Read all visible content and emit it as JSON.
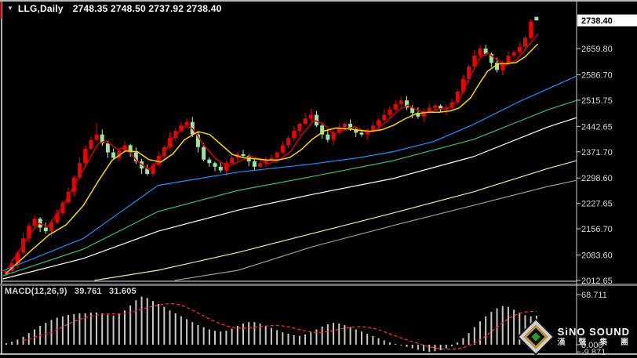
{
  "title": {
    "symbol": "LLG,Daily",
    "quote": "2748.35 2748.50 2737.92 2738.40",
    "open": "2748.35",
    "high": "2748.50",
    "low": "2737.92",
    "close": "2738.40"
  },
  "macd_label": {
    "name": "MACD(12,26,9)",
    "main_value": "39.761",
    "signal_value": "31.605"
  },
  "logo": {
    "brand": "SiNO SOUND",
    "brand_cn": "漢 聲 集 團"
  },
  "colors": {
    "background": "#000000",
    "up_candle": "#f20000",
    "down_candle_body": "#9de49d",
    "down_candle_wick": "#bdeebd",
    "ma_red": "#d40000",
    "ma_yellow": "#ffd400",
    "ma_blue": "#1e90ff",
    "ma_green": "#3cb878",
    "ma_white": "#ffffff",
    "ma_cream": "#eee8aa",
    "ma_gray": "#9a9a9a",
    "histogram": "#c8c8c8",
    "signal": "#ff2a2a",
    "axis_text": "#d8d8d8",
    "frame": "#e8e8e8",
    "separator": "#6e6e6e",
    "price_tag_bg": "#ffffff",
    "price_tag_text": "#000000"
  },
  "chart_data": {
    "type": "candlestick",
    "symbol": "LLG",
    "timeframe": "Daily",
    "grid": "off",
    "legend_position": "none",
    "current_price": 2738.4,
    "price_axis_ticks": [
      2659.8,
      2586.7,
      2515.75,
      2442.65,
      2371.7,
      2298.6,
      2227.65,
      2156.7,
      2083.6,
      2012.65
    ],
    "price_range_anchor": {
      "price_top_tick": 2659.8,
      "price_bottom_tick": 2012.65
    },
    "candles_ohlc": [
      [
        2030,
        2046,
        2022,
        2040
      ],
      [
        2040,
        2072,
        2035,
        2060
      ],
      [
        2060,
        2095,
        2047,
        2090
      ],
      [
        2090,
        2146,
        2084,
        2130
      ],
      [
        2130,
        2173,
        2120,
        2165
      ],
      [
        2165,
        2195,
        2161,
        2185
      ],
      [
        2185,
        2189,
        2148,
        2160
      ],
      [
        2160,
        2174,
        2143,
        2150
      ],
      [
        2150,
        2182,
        2135,
        2175
      ],
      [
        2175,
        2211,
        2170,
        2200
      ],
      [
        2200,
        2236,
        2192,
        2230
      ],
      [
        2230,
        2272,
        2225,
        2260
      ],
      [
        2260,
        2305,
        2247,
        2300
      ],
      [
        2300,
        2356,
        2294,
        2340
      ],
      [
        2340,
        2388,
        2330,
        2380
      ],
      [
        2380,
        2415,
        2376,
        2405
      ],
      [
        2405,
        2452,
        2398,
        2420
      ],
      [
        2420,
        2434,
        2388,
        2395
      ],
      [
        2395,
        2402,
        2355,
        2370
      ],
      [
        2370,
        2381,
        2350,
        2355
      ],
      [
        2355,
        2381,
        2345,
        2375
      ],
      [
        2375,
        2402,
        2371,
        2390
      ],
      [
        2390,
        2394,
        2358,
        2370
      ],
      [
        2370,
        2384,
        2338,
        2345
      ],
      [
        2345,
        2352,
        2310,
        2325
      ],
      [
        2325,
        2336,
        2305,
        2310
      ],
      [
        2310,
        2341,
        2302,
        2335
      ],
      [
        2335,
        2372,
        2330,
        2360
      ],
      [
        2360,
        2390,
        2347,
        2385
      ],
      [
        2385,
        2426,
        2379,
        2410
      ],
      [
        2410,
        2438,
        2400,
        2430
      ],
      [
        2430,
        2455,
        2426,
        2445
      ],
      [
        2445,
        2466,
        2440,
        2455
      ],
      [
        2455,
        2469,
        2413,
        2420
      ],
      [
        2420,
        2427,
        2370,
        2385
      ],
      [
        2385,
        2396,
        2345,
        2350
      ],
      [
        2350,
        2356,
        2330,
        2340
      ],
      [
        2340,
        2344,
        2318,
        2330
      ],
      [
        2330,
        2342,
        2313,
        2320
      ],
      [
        2320,
        2347,
        2305,
        2340
      ],
      [
        2340,
        2366,
        2335,
        2355
      ],
      [
        2355,
        2371,
        2347,
        2365
      ],
      [
        2365,
        2377,
        2355,
        2360
      ],
      [
        2360,
        2365,
        2332,
        2345
      ],
      [
        2345,
        2353,
        2320,
        2330
      ],
      [
        2330,
        2356,
        2326,
        2340
      ],
      [
        2340,
        2358,
        2330,
        2350
      ],
      [
        2350,
        2365,
        2346,
        2355
      ],
      [
        2355,
        2374,
        2341,
        2370
      ],
      [
        2370,
        2401,
        2365,
        2390
      ],
      [
        2390,
        2416,
        2382,
        2410
      ],
      [
        2410,
        2442,
        2405,
        2430
      ],
      [
        2430,
        2455,
        2417,
        2450
      ],
      [
        2450,
        2481,
        2444,
        2465
      ],
      [
        2465,
        2492,
        2455,
        2475
      ],
      [
        2475,
        2485,
        2441,
        2445
      ],
      [
        2445,
        2449,
        2408,
        2420
      ],
      [
        2420,
        2434,
        2398,
        2405
      ],
      [
        2405,
        2432,
        2390,
        2425
      ],
      [
        2425,
        2451,
        2420,
        2440
      ],
      [
        2440,
        2456,
        2432,
        2450
      ],
      [
        2450,
        2462,
        2430,
        2435
      ],
      [
        2435,
        2440,
        2413,
        2425
      ],
      [
        2425,
        2434,
        2414,
        2420
      ],
      [
        2420,
        2437,
        2405,
        2430
      ],
      [
        2430,
        2456,
        2425,
        2445
      ],
      [
        2445,
        2465,
        2432,
        2460
      ],
      [
        2460,
        2491,
        2454,
        2475
      ],
      [
        2475,
        2498,
        2465,
        2490
      ],
      [
        2490,
        2515,
        2486,
        2505
      ],
      [
        2505,
        2526,
        2493,
        2515
      ],
      [
        2515,
        2527,
        2488,
        2495
      ],
      [
        2495,
        2502,
        2465,
        2480
      ],
      [
        2480,
        2496,
        2464,
        2470
      ],
      [
        2470,
        2493,
        2455,
        2485
      ],
      [
        2485,
        2506,
        2480,
        2495
      ],
      [
        2495,
        2504,
        2488,
        2500
      ],
      [
        2500,
        2504,
        2483,
        2490
      ],
      [
        2490,
        2502,
        2475,
        2495
      ],
      [
        2495,
        2521,
        2490,
        2510
      ],
      [
        2510,
        2546,
        2502,
        2540
      ],
      [
        2540,
        2587,
        2535,
        2575
      ],
      [
        2575,
        2615,
        2562,
        2610
      ],
      [
        2610,
        2656,
        2604,
        2640
      ],
      [
        2640,
        2668,
        2630,
        2660
      ],
      [
        2660,
        2670,
        2641,
        2645
      ],
      [
        2645,
        2649,
        2608,
        2620
      ],
      [
        2620,
        2634,
        2593,
        2600
      ],
      [
        2600,
        2627,
        2585,
        2620
      ],
      [
        2620,
        2651,
        2615,
        2640
      ],
      [
        2640,
        2656,
        2632,
        2650
      ],
      [
        2650,
        2677,
        2645,
        2665
      ],
      [
        2665,
        2695,
        2652,
        2690
      ],
      [
        2690,
        2741,
        2684,
        2735
      ],
      [
        2748.35,
        2748.5,
        2737.92,
        2738.4
      ]
    ],
    "overlays": [
      {
        "name": "ma-fast-red",
        "color": "#d40000",
        "width": 1.5,
        "points": [
          [
            0.005,
            2040
          ],
          [
            0.05,
            2150
          ],
          [
            0.063,
            2172
          ],
          [
            0.077,
            2162
          ],
          [
            0.104,
            2220
          ],
          [
            0.131,
            2300
          ],
          [
            0.166,
            2395
          ],
          [
            0.179,
            2402
          ],
          [
            0.2,
            2378
          ],
          [
            0.213,
            2385
          ],
          [
            0.234,
            2345
          ],
          [
            0.254,
            2322
          ],
          [
            0.275,
            2355
          ],
          [
            0.296,
            2410
          ],
          [
            0.316,
            2443
          ],
          [
            0.33,
            2437
          ],
          [
            0.35,
            2390
          ],
          [
            0.371,
            2352
          ],
          [
            0.391,
            2331
          ],
          [
            0.412,
            2345
          ],
          [
            0.432,
            2360
          ],
          [
            0.446,
            2352
          ],
          [
            0.46,
            2338
          ],
          [
            0.48,
            2348
          ],
          [
            0.501,
            2372
          ],
          [
            0.521,
            2420
          ],
          [
            0.542,
            2460
          ],
          [
            0.558,
            2450
          ],
          [
            0.576,
            2422
          ],
          [
            0.597,
            2434
          ],
          [
            0.613,
            2442
          ],
          [
            0.631,
            2428
          ],
          [
            0.648,
            2432
          ],
          [
            0.668,
            2455
          ],
          [
            0.689,
            2488
          ],
          [
            0.706,
            2502
          ],
          [
            0.722,
            2488
          ],
          [
            0.74,
            2480
          ],
          [
            0.758,
            2491
          ],
          [
            0.777,
            2495
          ],
          [
            0.795,
            2518
          ],
          [
            0.815,
            2585
          ],
          [
            0.832,
            2635
          ],
          [
            0.845,
            2648
          ],
          [
            0.863,
            2626
          ],
          [
            0.877,
            2613
          ],
          [
            0.895,
            2629
          ],
          [
            0.911,
            2658
          ],
          [
            0.932,
            2700
          ]
        ]
      },
      {
        "name": "ma-mid-yellow",
        "color": "#ffd400",
        "width": 1.5,
        "points": [
          [
            0.005,
            2032
          ],
          [
            0.05,
            2098
          ],
          [
            0.08,
            2140
          ],
          [
            0.11,
            2168
          ],
          [
            0.14,
            2222
          ],
          [
            0.166,
            2290
          ],
          [
            0.19,
            2348
          ],
          [
            0.213,
            2374
          ],
          [
            0.234,
            2372
          ],
          [
            0.254,
            2350
          ],
          [
            0.275,
            2343
          ],
          [
            0.296,
            2366
          ],
          [
            0.316,
            2405
          ],
          [
            0.34,
            2428
          ],
          [
            0.36,
            2420
          ],
          [
            0.38,
            2392
          ],
          [
            0.4,
            2364
          ],
          [
            0.42,
            2355
          ],
          [
            0.44,
            2352
          ],
          [
            0.46,
            2349
          ],
          [
            0.48,
            2349
          ],
          [
            0.5,
            2356
          ],
          [
            0.52,
            2378
          ],
          [
            0.54,
            2408
          ],
          [
            0.56,
            2430
          ],
          [
            0.58,
            2438
          ],
          [
            0.6,
            2436
          ],
          [
            0.62,
            2432
          ],
          [
            0.64,
            2429
          ],
          [
            0.66,
            2433
          ],
          [
            0.68,
            2445
          ],
          [
            0.7,
            2463
          ],
          [
            0.72,
            2478
          ],
          [
            0.74,
            2482
          ],
          [
            0.76,
            2482
          ],
          [
            0.78,
            2486
          ],
          [
            0.795,
            2494
          ],
          [
            0.815,
            2522
          ],
          [
            0.832,
            2566
          ],
          [
            0.845,
            2597
          ],
          [
            0.863,
            2617
          ],
          [
            0.877,
            2618
          ],
          [
            0.895,
            2621
          ],
          [
            0.911,
            2638
          ],
          [
            0.932,
            2672
          ]
        ]
      },
      {
        "name": "ma-blue",
        "color": "#1e90ff",
        "width": 1.2,
        "points": [
          [
            0,
            2040
          ],
          [
            0.14,
            2130
          ],
          [
            0.27,
            2278
          ],
          [
            0.41,
            2315
          ],
          [
            0.54,
            2338
          ],
          [
            0.62,
            2355
          ],
          [
            0.68,
            2372
          ],
          [
            0.75,
            2400
          ],
          [
            0.82,
            2448
          ],
          [
            0.9,
            2512
          ],
          [
            1,
            2583
          ]
        ]
      },
      {
        "name": "ma-green",
        "color": "#3cb878",
        "width": 1.2,
        "points": [
          [
            0,
            2026
          ],
          [
            0.14,
            2100
          ],
          [
            0.27,
            2205
          ],
          [
            0.41,
            2264
          ],
          [
            0.54,
            2303
          ],
          [
            0.68,
            2347
          ],
          [
            0.82,
            2406
          ],
          [
            0.95,
            2489
          ],
          [
            1,
            2515
          ]
        ]
      },
      {
        "name": "ma-white",
        "color": "#ffffff",
        "width": 1.2,
        "points": [
          [
            0,
            2017
          ],
          [
            0.14,
            2074
          ],
          [
            0.27,
            2150
          ],
          [
            0.41,
            2209
          ],
          [
            0.54,
            2253
          ],
          [
            0.68,
            2297
          ],
          [
            0.82,
            2358
          ],
          [
            0.95,
            2441
          ],
          [
            1,
            2467
          ]
        ]
      },
      {
        "name": "ma-cream",
        "color": "#eee8aa",
        "width": 1.2,
        "points": [
          [
            0.16,
            2013
          ],
          [
            0.27,
            2041
          ],
          [
            0.41,
            2091
          ],
          [
            0.54,
            2144
          ],
          [
            0.68,
            2201
          ],
          [
            0.82,
            2260
          ],
          [
            0.95,
            2325
          ],
          [
            1,
            2347
          ]
        ]
      },
      {
        "name": "ma-gray",
        "color": "#9a9a9a",
        "width": 1.2,
        "points": [
          [
            0.3,
            2013
          ],
          [
            0.41,
            2041
          ],
          [
            0.54,
            2107
          ],
          [
            0.68,
            2166
          ],
          [
            0.82,
            2222
          ],
          [
            0.95,
            2275
          ],
          [
            1,
            2292
          ]
        ]
      }
    ],
    "macd": {
      "label": "MACD(12,26,9)",
      "main_value": 39.761,
      "signal_value": 31.605,
      "axis_ticks": [
        68.711,
        0.0,
        -9.871
      ],
      "signal_period": 9,
      "histogram": [
        2,
        4,
        7,
        11,
        16,
        21,
        26,
        30,
        34,
        37,
        39,
        41,
        42,
        43,
        43,
        44,
        44,
        43,
        41,
        40,
        42,
        47,
        54,
        61,
        66,
        64,
        60,
        56,
        52,
        47,
        43,
        39,
        35,
        31,
        27,
        24,
        21,
        19,
        18,
        19,
        22,
        26,
        29,
        31,
        31,
        29,
        26,
        23,
        20,
        17,
        15,
        13,
        12,
        14,
        17,
        21,
        25,
        28,
        30,
        29,
        27,
        24,
        21,
        18,
        15,
        12,
        9,
        6,
        3,
        1,
        -1,
        -3,
        -5,
        -7,
        -8.5,
        -9.9,
        -9,
        -7.5,
        -5,
        -2,
        3,
        9,
        16,
        24,
        32,
        39,
        45,
        50,
        53,
        52,
        48,
        44,
        40.5,
        39,
        39.8
      ]
    }
  }
}
